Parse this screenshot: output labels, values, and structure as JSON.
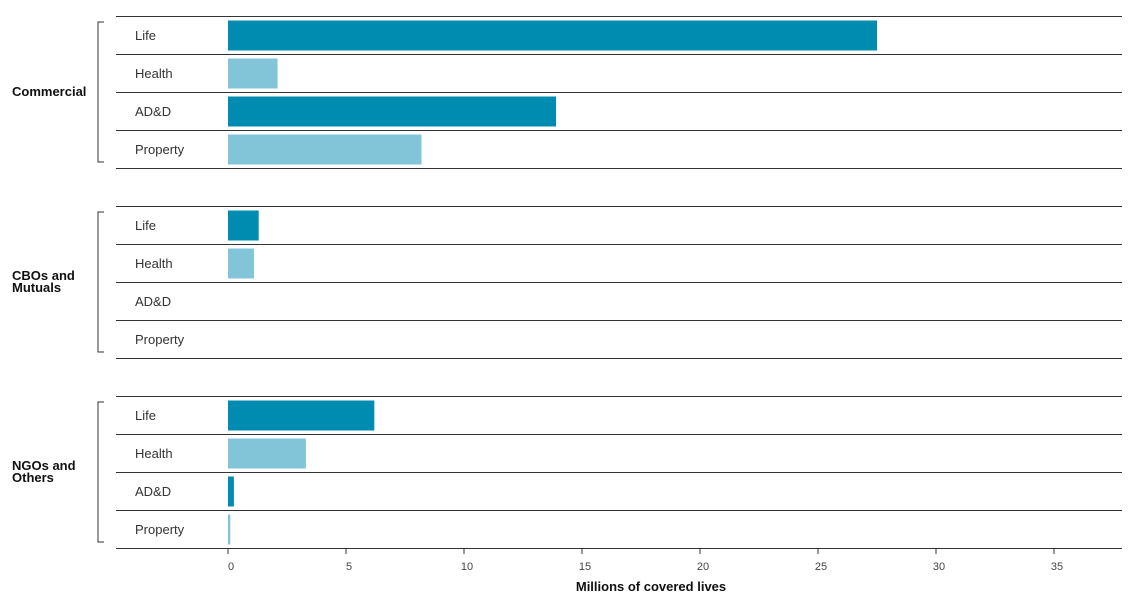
{
  "chart_data": {
    "type": "bar",
    "orientation": "horizontal",
    "title": "",
    "xlabel": "Millions of covered lives",
    "ylabel": "",
    "xlim": [
      0,
      38
    ],
    "x_ticks": [
      "0",
      "5",
      "10",
      "15",
      "20",
      "25",
      "30",
      "35"
    ],
    "grid": false,
    "legend": "none",
    "colors": {
      "dark": "#008cb0",
      "light": "#82c5d8",
      "rule": "#333333"
    },
    "groups": [
      {
        "label_lines": [
          "Commercial"
        ],
        "rows": [
          {
            "label": "Life",
            "value": 27.5,
            "shade": "dark"
          },
          {
            "label": "Health",
            "value": 2.1,
            "shade": "light"
          },
          {
            "label": "AD&D",
            "value": 13.9,
            "shade": "dark"
          },
          {
            "label": "Property",
            "value": 8.2,
            "shade": "light"
          }
        ]
      },
      {
        "label_lines": [
          "CBOs and",
          "Mutuals"
        ],
        "rows": [
          {
            "label": "Life",
            "value": 1.3,
            "shade": "dark"
          },
          {
            "label": "Health",
            "value": 1.1,
            "shade": "light"
          },
          {
            "label": "AD&D",
            "value": 0,
            "shade": "dark"
          },
          {
            "label": "Property",
            "value": 0,
            "shade": "light"
          }
        ]
      },
      {
        "label_lines": [
          "NGOs and",
          "Others"
        ],
        "rows": [
          {
            "label": "Life",
            "value": 6.2,
            "shade": "dark"
          },
          {
            "label": "Health",
            "value": 3.3,
            "shade": "light"
          },
          {
            "label": "AD&D",
            "value": 0.25,
            "shade": "dark"
          },
          {
            "label": "Property",
            "value": 0.1,
            "shade": "light"
          }
        ]
      }
    ]
  }
}
